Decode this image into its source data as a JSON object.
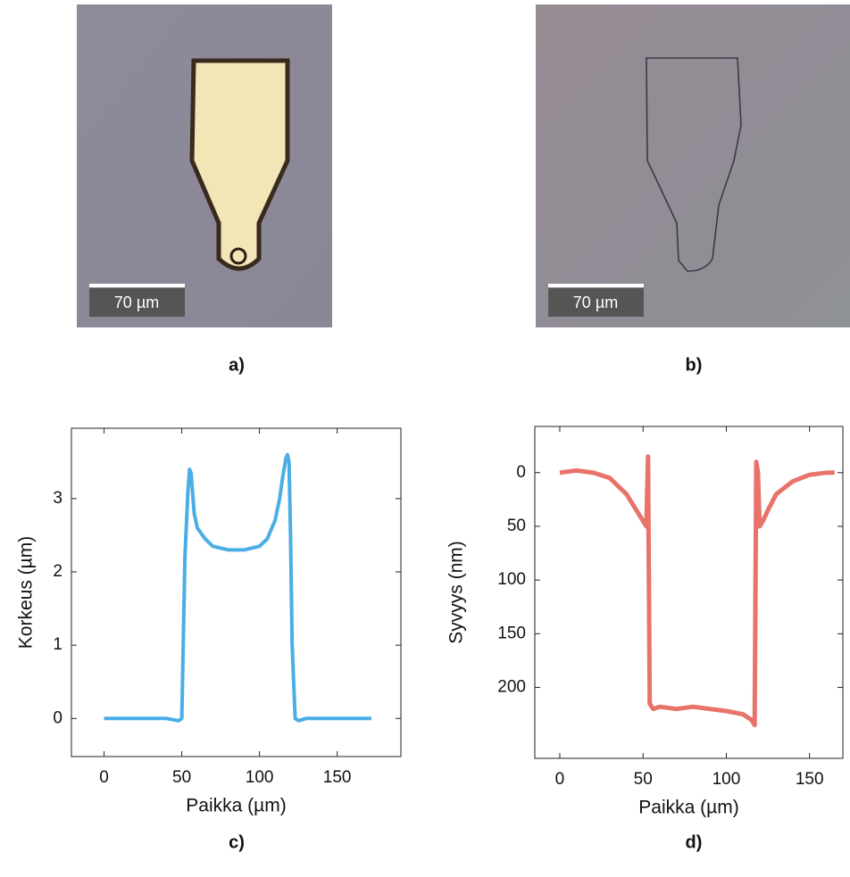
{
  "images": [
    {
      "scale_bar": "70 µm",
      "label": "a)"
    },
    {
      "scale_bar": "70 µm",
      "label": "b)"
    }
  ],
  "chart_data": [
    {
      "type": "line",
      "label": "c)",
      "xlabel": "Paikka (µm)",
      "ylabel": "Korkeus (µm)",
      "color": "#4aaee6",
      "x": [
        0,
        10,
        20,
        30,
        40,
        48,
        50,
        52,
        54,
        55,
        56,
        58,
        60,
        65,
        70,
        80,
        90,
        100,
        105,
        110,
        113,
        115,
        117,
        118,
        119,
        120,
        121,
        123,
        125,
        130,
        140,
        150,
        160,
        172
      ],
      "values": [
        0,
        0,
        0,
        0,
        0,
        -0.03,
        0,
        2.2,
        3.1,
        3.4,
        3.35,
        2.8,
        2.6,
        2.45,
        2.35,
        2.3,
        2.3,
        2.35,
        2.45,
        2.7,
        3.0,
        3.3,
        3.55,
        3.6,
        3.5,
        2.5,
        1.0,
        0,
        -0.03,
        0,
        0,
        0,
        0,
        0
      ],
      "xlim": [
        -21,
        191
      ],
      "ylim": [
        -0.52,
        3.96
      ],
      "xticks": [
        0,
        50,
        100,
        150
      ],
      "yticks": [
        0,
        1,
        2,
        3
      ]
    },
    {
      "type": "line",
      "label": "d)",
      "xlabel": "Paikka (µm)",
      "ylabel": "Syvyys (nm)",
      "color": "#e8736a",
      "x": [
        0,
        10,
        20,
        30,
        40,
        48,
        52,
        53,
        54,
        56,
        60,
        70,
        80,
        90,
        100,
        110,
        115,
        117,
        118,
        119,
        120,
        122,
        125,
        130,
        140,
        150,
        160,
        165
      ],
      "values": [
        0,
        -2,
        0,
        5,
        20,
        40,
        50,
        -15,
        215,
        220,
        218,
        220,
        218,
        220,
        222,
        225,
        230,
        235,
        -10,
        0,
        50,
        45,
        35,
        20,
        8,
        2,
        0,
        0
      ],
      "xlim": [
        -15,
        170
      ],
      "ylim": [
        266,
        -43
      ],
      "xticks": [
        0,
        50,
        100,
        150
      ],
      "yticks": [
        0,
        50,
        100,
        150,
        200
      ]
    }
  ]
}
